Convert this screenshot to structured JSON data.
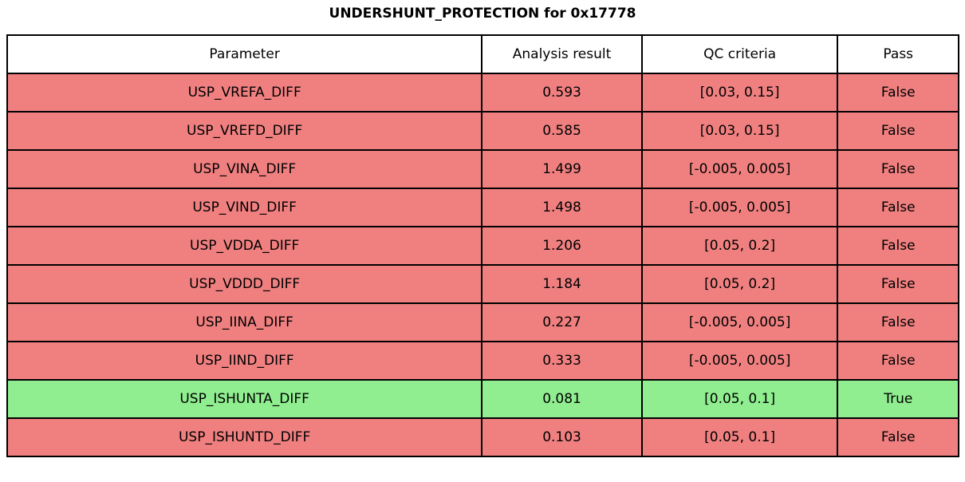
{
  "title": "UNDERSHUNT_PROTECTION for 0x17778",
  "colors": {
    "fail_row_bg": "#f08080",
    "pass_row_bg": "#90ee90",
    "header_bg": "#ffffff",
    "border": "#000000",
    "text": "#000000"
  },
  "chart_data": {
    "type": "table",
    "title": "UNDERSHUNT_PROTECTION for 0x17778",
    "columns": [
      "Parameter",
      "Analysis result",
      "QC criteria",
      "Pass"
    ],
    "rows": [
      {
        "cells": [
          "USP_VREFA_DIFF",
          "0.593",
          "[0.03, 0.15]",
          "False"
        ],
        "pass": false
      },
      {
        "cells": [
          "USP_VREFD_DIFF",
          "0.585",
          "[0.03, 0.15]",
          "False"
        ],
        "pass": false
      },
      {
        "cells": [
          "USP_VINA_DIFF",
          "1.499",
          "[-0.005, 0.005]",
          "False"
        ],
        "pass": false
      },
      {
        "cells": [
          "USP_VIND_DIFF",
          "1.498",
          "[-0.005, 0.005]",
          "False"
        ],
        "pass": false
      },
      {
        "cells": [
          "USP_VDDA_DIFF",
          "1.206",
          "[0.05, 0.2]",
          "False"
        ],
        "pass": false
      },
      {
        "cells": [
          "USP_VDDD_DIFF",
          "1.184",
          "[0.05, 0.2]",
          "False"
        ],
        "pass": false
      },
      {
        "cells": [
          "USP_IINA_DIFF",
          "0.227",
          "[-0.005, 0.005]",
          "False"
        ],
        "pass": false
      },
      {
        "cells": [
          "USP_IIND_DIFF",
          "0.333",
          "[-0.005, 0.005]",
          "False"
        ],
        "pass": false
      },
      {
        "cells": [
          "USP_ISHUNTA_DIFF",
          "0.081",
          "[0.05, 0.1]",
          "True"
        ],
        "pass": true
      },
      {
        "cells": [
          "USP_ISHUNTD_DIFF",
          "0.103",
          "[0.05, 0.1]",
          "False"
        ],
        "pass": false
      }
    ],
    "layout": {
      "legend": "none",
      "grid": "full-cell-borders",
      "header_position": "top",
      "fail_color": "#f08080",
      "pass_color": "#90ee90"
    }
  }
}
